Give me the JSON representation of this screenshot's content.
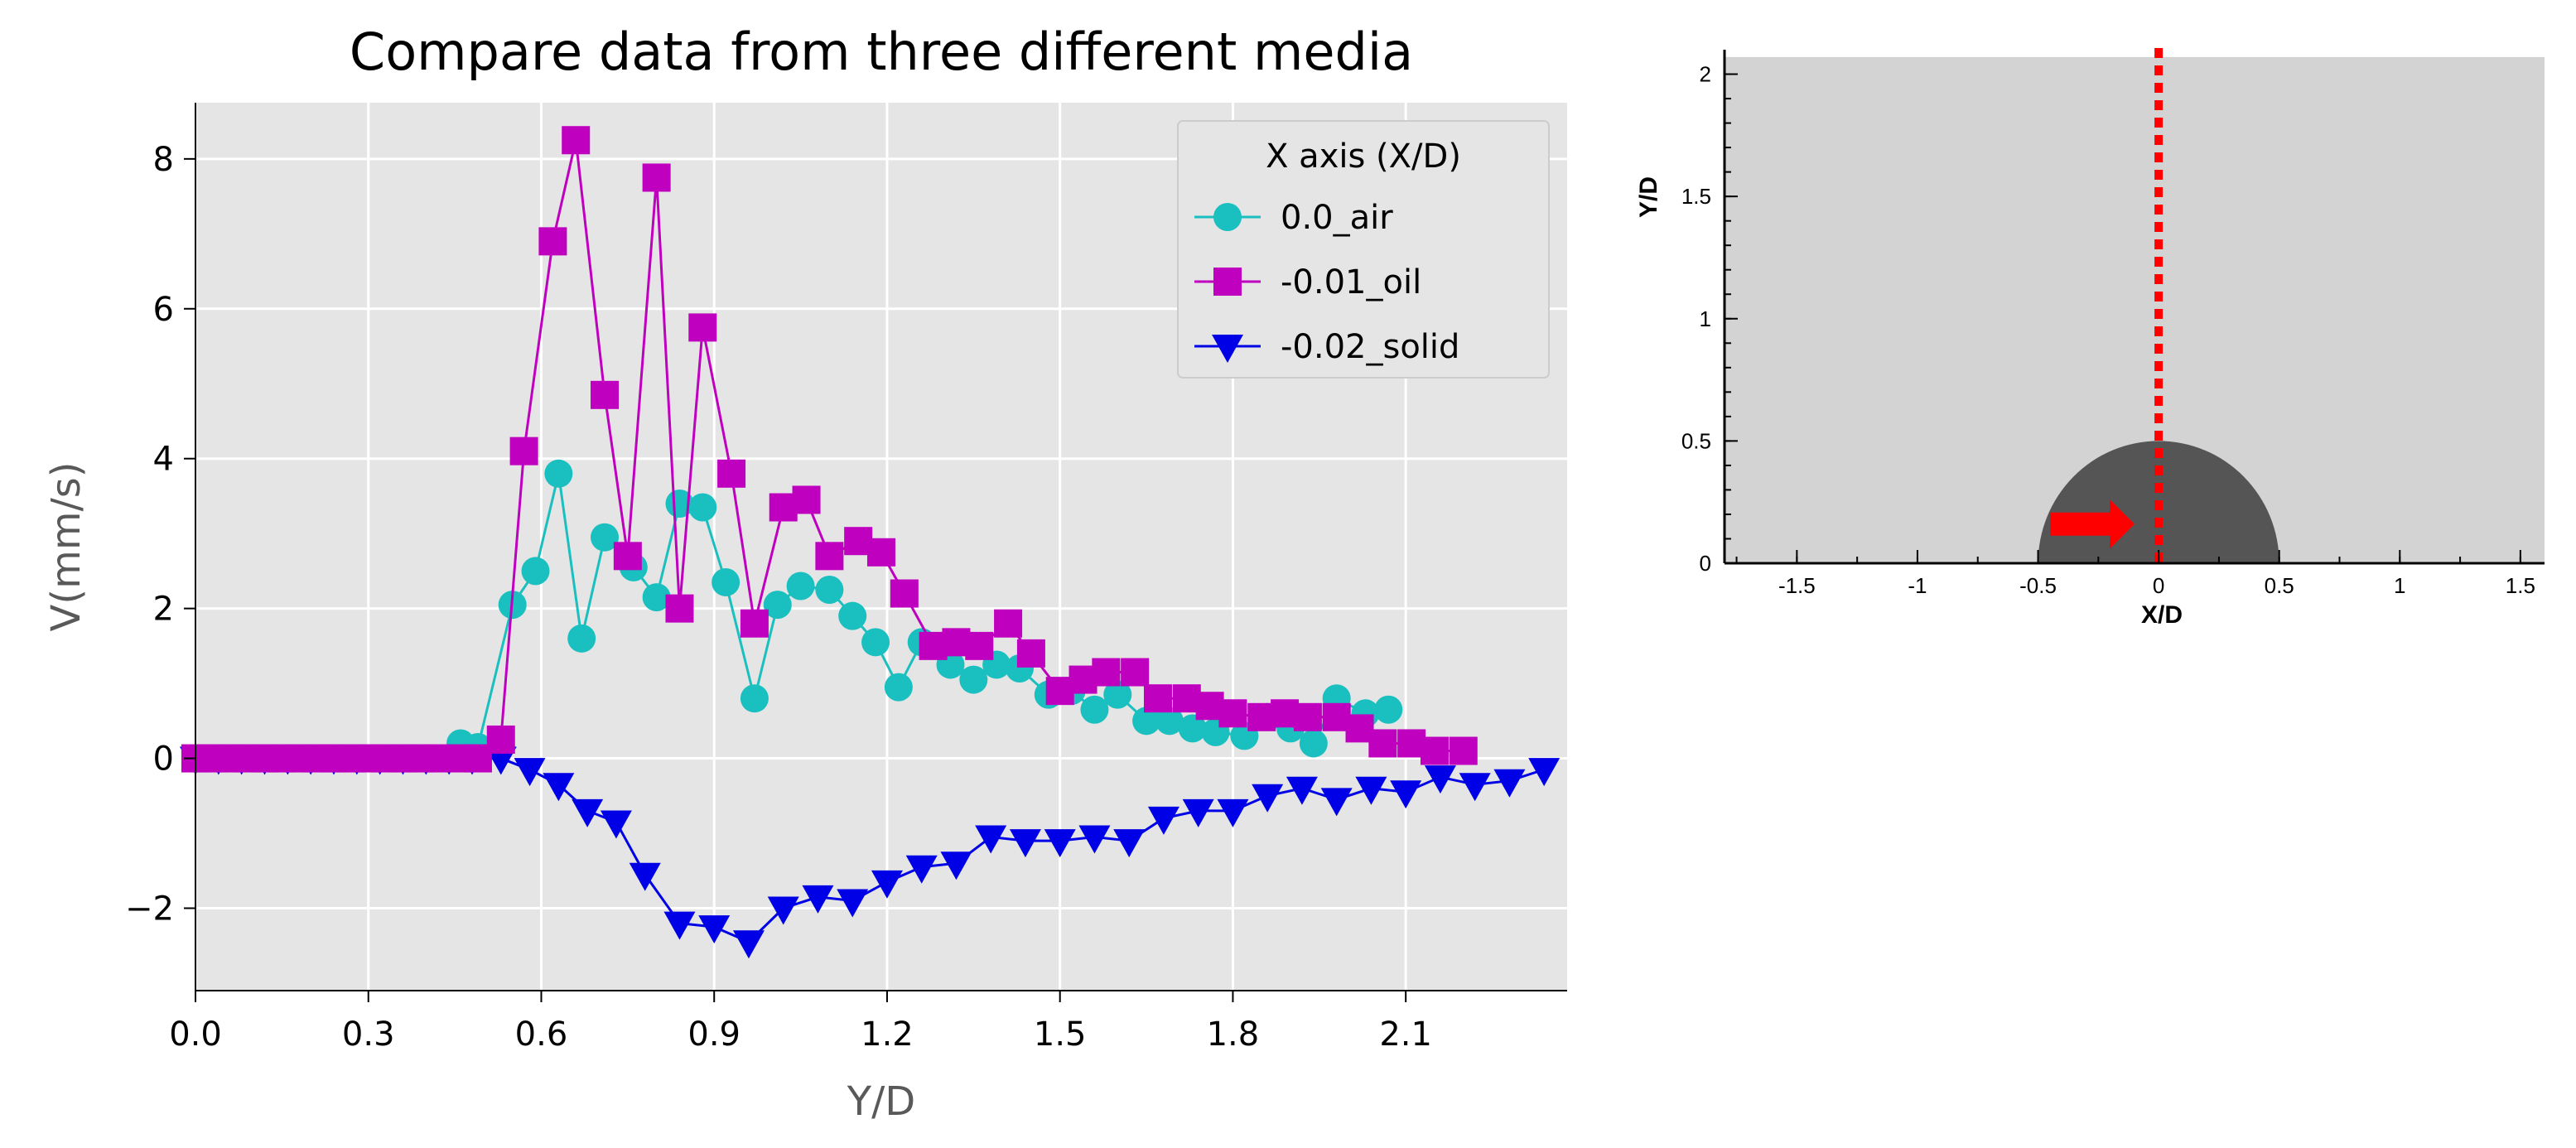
{
  "chart_data": [
    {
      "type": "line",
      "title": "Compare data from three different media",
      "xlabel": "Y/D",
      "ylabel": "V(mm/s)",
      "xlim": [
        0.0,
        2.38
      ],
      "ylim": [
        -3.1,
        8.75
      ],
      "xticks": [
        "0.0",
        "0.3",
        "0.6",
        "0.9",
        "1.2",
        "1.5",
        "1.8",
        "2.1"
      ],
      "yticks": [
        "−2",
        "0",
        "2",
        "4",
        "6",
        "8"
      ],
      "xtick_values": [
        0.0,
        0.3,
        0.6,
        0.9,
        1.2,
        1.5,
        1.8,
        2.1
      ],
      "ytick_values": [
        -2,
        0,
        2,
        4,
        6,
        8
      ],
      "grid": true,
      "legend": {
        "title": "X axis (X/D)",
        "position": "top-right"
      },
      "series": [
        {
          "name": "0.0_air",
          "color": "#1ABFBF",
          "marker": "circle",
          "x": [
            0.0,
            0.03,
            0.06,
            0.09,
            0.12,
            0.15,
            0.18,
            0.21,
            0.24,
            0.27,
            0.3,
            0.33,
            0.36,
            0.39,
            0.42,
            0.46,
            0.49,
            0.55,
            0.59,
            0.63,
            0.67,
            0.71,
            0.76,
            0.8,
            0.84,
            0.88,
            0.92,
            0.97,
            1.01,
            1.05,
            1.1,
            1.14,
            1.18,
            1.22,
            1.26,
            1.31,
            1.35,
            1.39,
            1.43,
            1.48,
            1.52,
            1.56,
            1.6,
            1.65,
            1.69,
            1.73,
            1.77,
            1.82,
            1.86,
            1.9,
            1.94,
            1.98,
            2.03,
            2.07
          ],
          "values": [
            0.0,
            0.0,
            0.0,
            0.0,
            0.0,
            0.0,
            0.0,
            0.0,
            0.0,
            0.0,
            0.0,
            0.0,
            0.0,
            0.0,
            0.0,
            0.2,
            0.15,
            2.05,
            2.5,
            3.8,
            1.6,
            2.95,
            2.55,
            2.15,
            3.4,
            3.35,
            2.35,
            0.8,
            2.05,
            2.3,
            2.25,
            1.9,
            1.55,
            0.95,
            1.55,
            1.25,
            1.05,
            1.25,
            1.2,
            0.85,
            0.9,
            0.65,
            0.85,
            0.5,
            0.5,
            0.4,
            0.35,
            0.3,
            0.55,
            0.4,
            0.2,
            0.8,
            0.6,
            0.65
          ]
        },
        {
          "name": "-0.01_oil",
          "color": "#BF00BF",
          "marker": "square",
          "x": [
            0.0,
            0.03,
            0.06,
            0.09,
            0.12,
            0.15,
            0.18,
            0.21,
            0.24,
            0.27,
            0.3,
            0.33,
            0.36,
            0.39,
            0.42,
            0.46,
            0.49,
            0.53,
            0.57,
            0.62,
            0.66,
            0.71,
            0.75,
            0.8,
            0.84,
            0.88,
            0.93,
            0.97,
            1.02,
            1.06,
            1.1,
            1.15,
            1.19,
            1.23,
            1.28,
            1.32,
            1.36,
            1.41,
            1.45,
            1.5,
            1.54,
            1.58,
            1.63,
            1.67,
            1.72,
            1.76,
            1.8,
            1.85,
            1.89,
            1.93,
            1.98,
            2.02,
            2.06,
            2.11,
            2.15,
            2.2
          ],
          "values": [
            0.0,
            0.0,
            0.0,
            0.0,
            0.0,
            0.0,
            0.0,
            0.0,
            0.0,
            0.0,
            0.0,
            0.0,
            0.0,
            0.0,
            0.0,
            0.0,
            0.0,
            0.25,
            4.1,
            6.9,
            8.25,
            4.85,
            2.7,
            7.75,
            2.0,
            5.75,
            3.8,
            1.8,
            3.35,
            3.45,
            2.7,
            2.9,
            2.75,
            2.2,
            1.5,
            1.55,
            1.5,
            1.8,
            1.4,
            0.9,
            1.05,
            1.15,
            1.15,
            0.8,
            0.8,
            0.7,
            0.6,
            0.55,
            0.6,
            0.55,
            0.55,
            0.4,
            0.2,
            0.2,
            0.1,
            0.1
          ]
        },
        {
          "name": "-0.02_solid",
          "color": "#0000E6",
          "marker": "triangle-down",
          "x": [
            0.0,
            0.04,
            0.08,
            0.12,
            0.16,
            0.2,
            0.24,
            0.28,
            0.32,
            0.36,
            0.4,
            0.44,
            0.48,
            0.53,
            0.58,
            0.63,
            0.68,
            0.73,
            0.78,
            0.84,
            0.9,
            0.96,
            1.02,
            1.08,
            1.14,
            1.2,
            1.26,
            1.32,
            1.38,
            1.44,
            1.5,
            1.56,
            1.62,
            1.68,
            1.74,
            1.8,
            1.86,
            1.92,
            1.98,
            2.04,
            2.1,
            2.16,
            2.22,
            2.28,
            2.34
          ],
          "values": [
            0.0,
            0.0,
            0.0,
            0.0,
            0.0,
            0.0,
            0.0,
            0.0,
            0.0,
            0.0,
            0.0,
            0.0,
            0.0,
            0.0,
            -0.15,
            -0.35,
            -0.7,
            -0.85,
            -1.55,
            -2.2,
            -2.25,
            -2.45,
            -2.0,
            -1.85,
            -1.9,
            -1.65,
            -1.45,
            -1.4,
            -1.05,
            -1.1,
            -1.1,
            -1.05,
            -1.1,
            -0.8,
            -0.7,
            -0.7,
            -0.5,
            -0.4,
            -0.55,
            -0.4,
            -0.45,
            -0.25,
            -0.35,
            -0.3,
            -0.15
          ]
        }
      ]
    },
    {
      "type": "diagram",
      "xlabel": "X/D",
      "ylabel": "Y/D",
      "xlim": [
        -1.8,
        1.6
      ],
      "ylim": [
        0,
        2.1
      ],
      "xticks": [
        "-1.5",
        "-1",
        "-0.5",
        "0",
        "0.5",
        "1",
        "1.5"
      ],
      "yticks": [
        "0",
        "0.5",
        "1",
        "1.5",
        "2"
      ],
      "xtick_values": [
        -1.5,
        -1,
        -0.5,
        0,
        0.5,
        1,
        1.5
      ],
      "ytick_values": [
        0,
        0.5,
        1,
        1.5,
        2
      ],
      "domain_top": 2.07,
      "obstacle_radius": 0.5,
      "probe_line_x": 0,
      "arrow_x": [
        -0.45,
        -0.1
      ],
      "arrow_y": 0.16,
      "background_color": "#D3D3D3",
      "obstacle_color": "#555555",
      "probe_color": "#FF0000"
    }
  ]
}
